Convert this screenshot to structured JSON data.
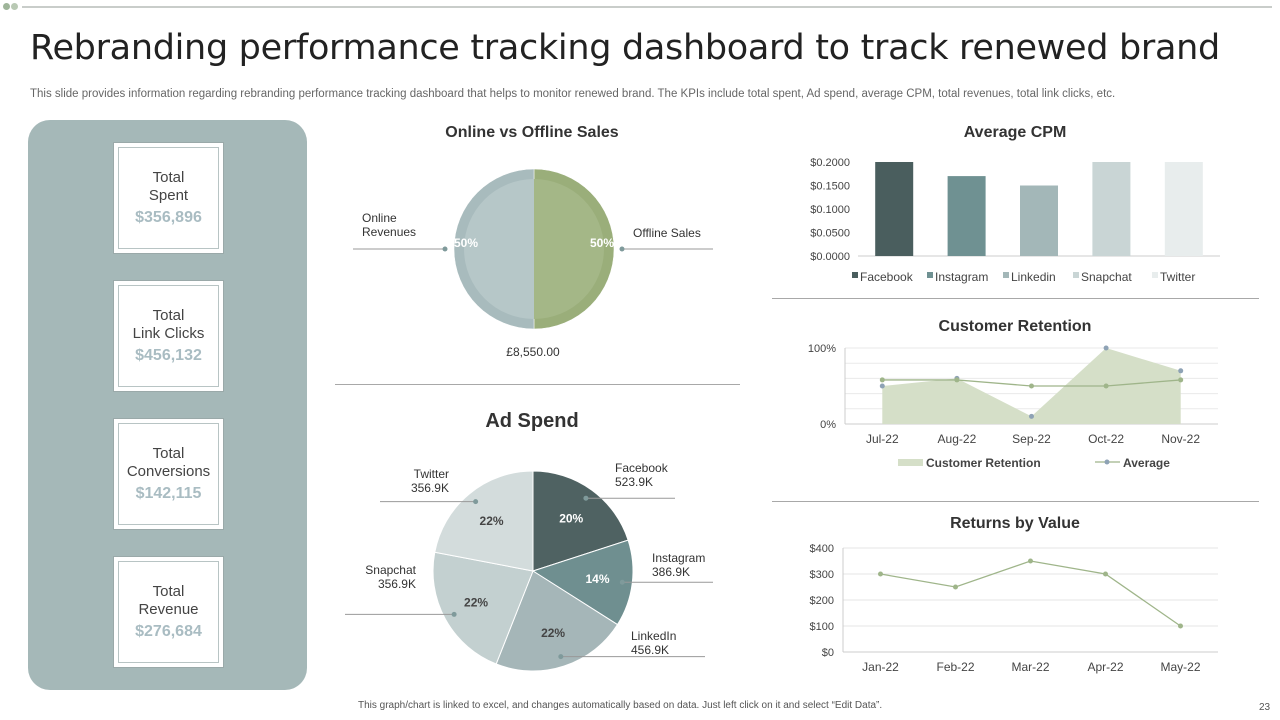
{
  "header": {
    "title": "Rebranding performance tracking dashboard to track renewed brand",
    "subtitle": "This slide provides information regarding rebranding performance tracking dashboard that helps to monitor renewed brand. The KPIs include total spent, Ad spend, average CPM, total revenues, total link clicks, etc."
  },
  "kpis": [
    {
      "label": "Total\nSpent",
      "value": "$356,896"
    },
    {
      "label": "Total\nLink Clicks",
      "value": "$456,132"
    },
    {
      "label": "Total\nConversions",
      "value": "$142,115"
    },
    {
      "label": "Total\nRevenue",
      "value": "$276,684"
    }
  ],
  "colors": {
    "panel": "#a5b8b8",
    "online": "#a8bbbd",
    "offline": "#9aae7a",
    "line_green": "#9fb58a",
    "area_fill": "#d5dfc8"
  },
  "chart_data": [
    {
      "type": "pie",
      "title": "Online vs Offline Sales",
      "slices": [
        {
          "name": "Online\nRevenues",
          "value": 50,
          "label": "50%",
          "color": "#a8bbbd"
        },
        {
          "name": "Offline Sales",
          "value": 50,
          "label": "50%",
          "color": "#9aae7a"
        }
      ],
      "total_label": "£8,550.00"
    },
    {
      "type": "pie",
      "title": "Ad Spend",
      "slices": [
        {
          "name": "Facebook",
          "amount": "523.9K",
          "value": 20,
          "label": "20%",
          "color": "#4f6262"
        },
        {
          "name": "Instagram",
          "amount": "386.9K",
          "value": 14,
          "label": "14%",
          "color": "#6f8f90"
        },
        {
          "name": "LinkedIn",
          "amount": "456.9K",
          "value": 22,
          "label": "22%",
          "color": "#a5b6b8"
        },
        {
          "name": "Snapchat",
          "amount": "356.9K",
          "value": 22,
          "label": "22%",
          "color": "#c3d0d0"
        },
        {
          "name": "Twitter",
          "amount": "356.9K",
          "value": 22,
          "label": "22%",
          "color": "#d3dcdc"
        }
      ]
    },
    {
      "type": "bar",
      "title": "Average CPM",
      "categories": [
        "Facebook",
        "Instagram",
        "Linkedin",
        "Snapchat",
        "Twitter"
      ],
      "values": [
        0.2,
        0.17,
        0.15,
        0.2,
        0.2
      ],
      "colors": [
        "#4a5e5e",
        "#6f9192",
        "#a3b7b8",
        "#c9d5d5",
        "#e8eded"
      ],
      "yticks": [
        "$0.0000",
        "$0.0500",
        "$0.1000",
        "$0.1500",
        "$0.2000"
      ],
      "ylim": [
        0,
        0.2
      ]
    },
    {
      "type": "area",
      "title": "Customer Retention",
      "categories": [
        "Jul-22",
        "Aug-22",
        "Sep-22",
        "Oct-22",
        "Nov-22"
      ],
      "series": [
        {
          "name": "Customer Retention",
          "values": [
            50,
            60,
            10,
            100,
            70
          ]
        },
        {
          "name": "Average",
          "values": [
            58,
            58,
            50,
            50,
            58
          ]
        }
      ],
      "yticks": [
        "0%",
        "100%"
      ],
      "ylim": [
        0,
        100
      ]
    },
    {
      "type": "line",
      "title": "Returns by Value",
      "categories": [
        "Jan-22",
        "Feb-22",
        "Mar-22",
        "Apr-22",
        "May-22"
      ],
      "values": [
        300,
        250,
        350,
        300,
        100
      ],
      "yticks": [
        "$0",
        "$100",
        "$200",
        "$300",
        "$400"
      ],
      "ylim": [
        0,
        400
      ]
    }
  ],
  "footer": {
    "note": "This graph/chart is linked to excel, and changes automatically based on data. Just left click on it and select “Edit Data”.",
    "page": "23"
  }
}
